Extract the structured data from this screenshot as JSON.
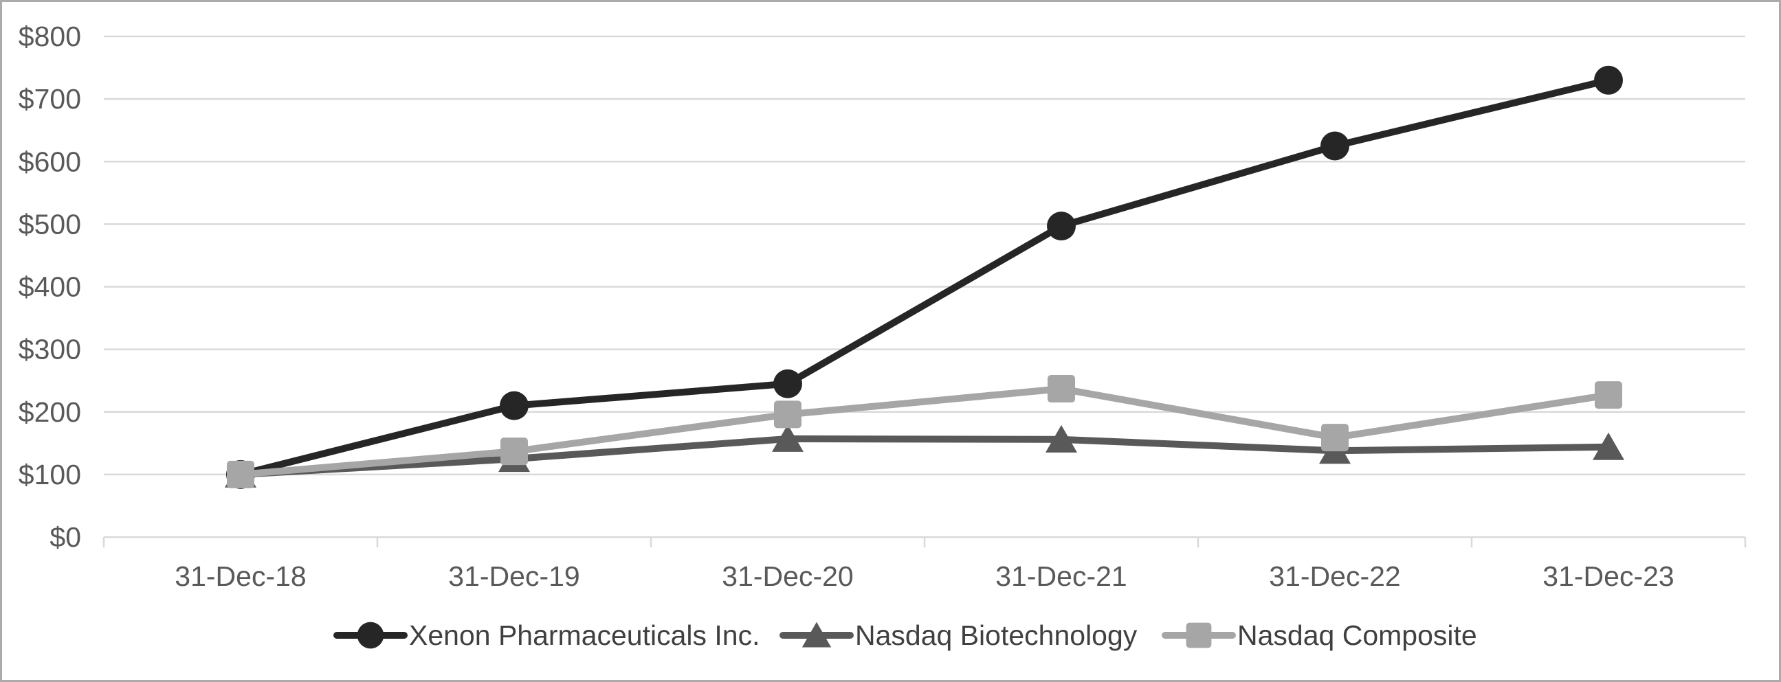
{
  "chart_data": {
    "type": "line",
    "title": "",
    "x_categories": [
      "31-Dec-18",
      "31-Dec-19",
      "31-Dec-20",
      "31-Dec-21",
      "31-Dec-22",
      "31-Dec-23"
    ],
    "series": [
      {
        "name": "Xenon Pharmaceuticals Inc.",
        "marker": "circle",
        "color": "#262626",
        "values": [
          100,
          210,
          245,
          497,
          625,
          730
        ]
      },
      {
        "name": "Nasdaq Biotechnology",
        "marker": "triangle",
        "color": "#595959",
        "values": [
          100,
          125,
          157,
          156,
          138,
          144
        ]
      },
      {
        "name": "Nasdaq Composite",
        "marker": "square",
        "color": "#a6a6a6",
        "values": [
          100,
          137,
          196,
          237,
          159,
          227
        ]
      }
    ],
    "y_axis": {
      "min": 0,
      "max": 800,
      "step": 100,
      "tick_labels": [
        "$0",
        "$100",
        "$200",
        "$300",
        "$400",
        "$500",
        "$600",
        "$700",
        "$800"
      ]
    },
    "grid": true,
    "legend_position": "bottom"
  },
  "styles": {
    "background": "#ffffff",
    "gridline_color": "#d9d9d9",
    "axis_tick_color": "#d9d9d9",
    "axis_label_color": "#595959",
    "legend_text_color": "#404040",
    "frame_border_color": "#ababab"
  }
}
